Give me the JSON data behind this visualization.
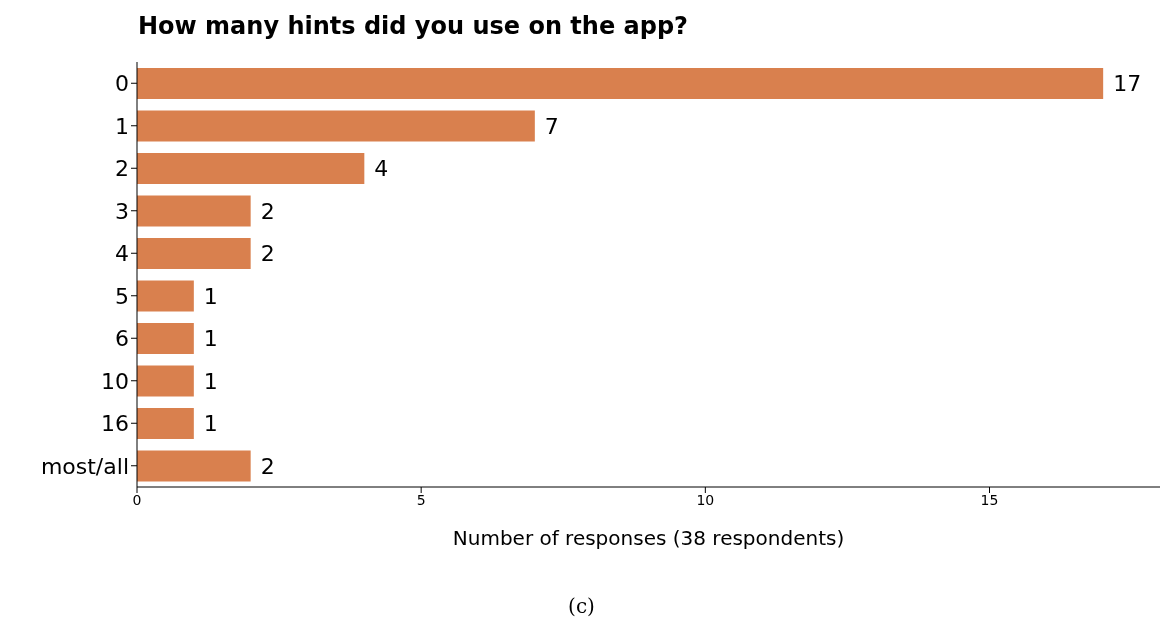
{
  "chart_data": {
    "type": "bar",
    "orientation": "horizontal",
    "title": "How many hints did you use on the app?",
    "xlabel": "Number of responses (38 respondents)",
    "categories": [
      "0",
      "1",
      "2",
      "3",
      "4",
      "5",
      "6",
      "10",
      "16",
      "most/all"
    ],
    "values": [
      17,
      7,
      4,
      2,
      2,
      1,
      1,
      1,
      1,
      2
    ],
    "color": "#d9804e",
    "xlim": [
      0,
      18
    ],
    "xticks": [
      0,
      5,
      10,
      15
    ],
    "grid": false,
    "data_labels": true,
    "annotations": [
      "(c)"
    ]
  }
}
